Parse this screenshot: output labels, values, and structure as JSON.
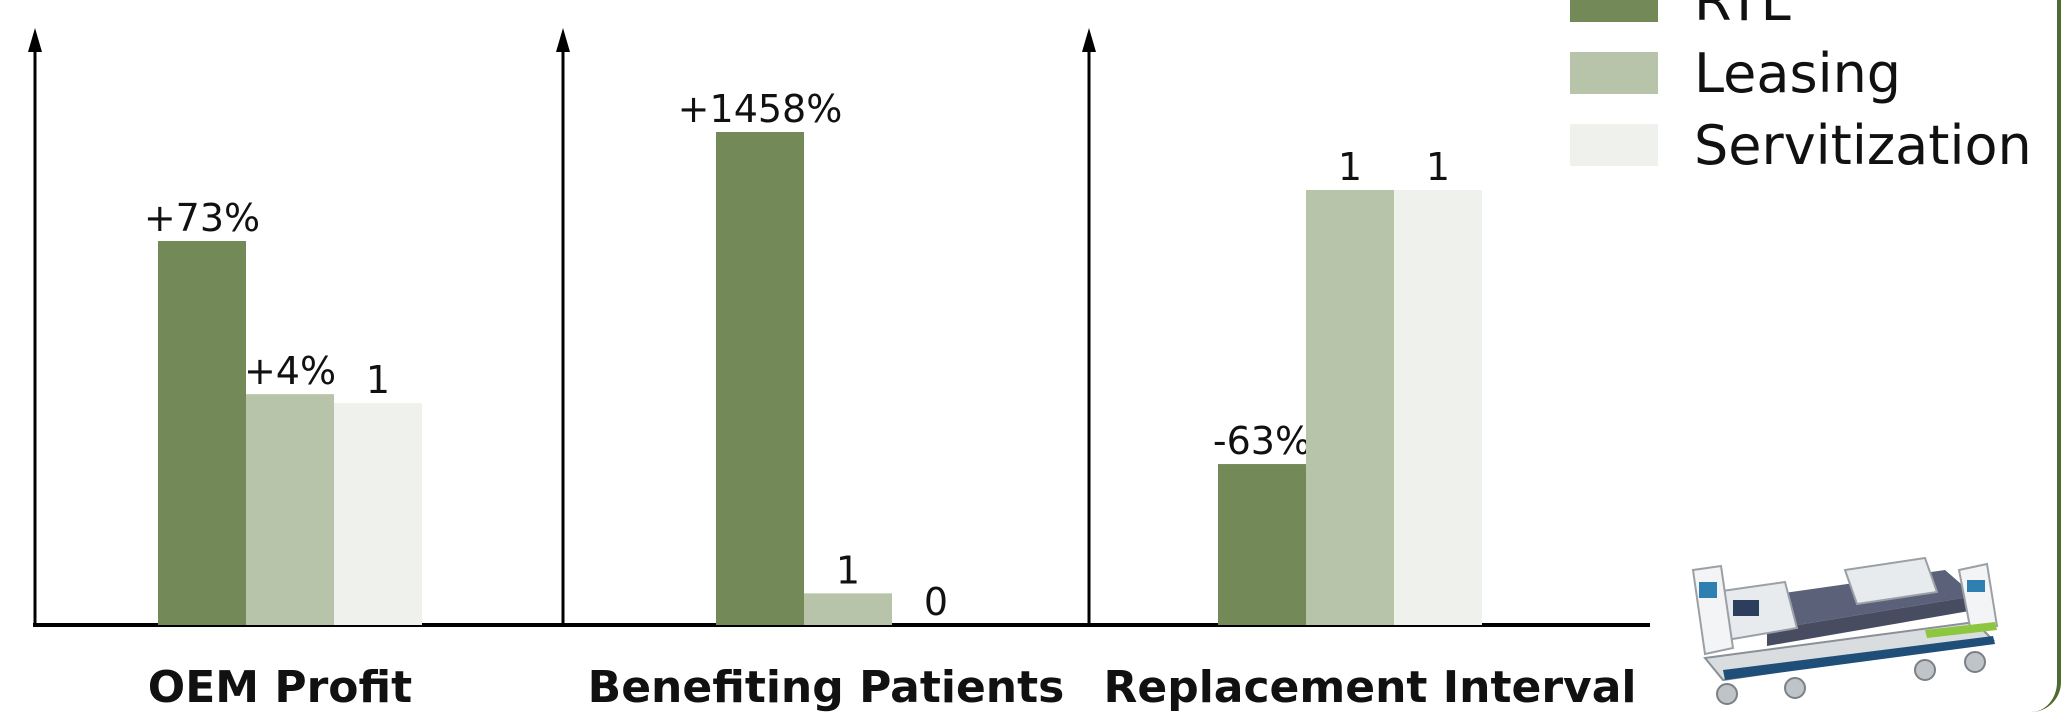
{
  "chart_data": {
    "type": "bar",
    "panels": [
      {
        "category": "OEM Profit",
        "values": [
          1.73,
          1.04,
          1
        ],
        "labels": [
          "+73%",
          "+4%",
          "1"
        ]
      },
      {
        "category": "Benefiting Patients",
        "values": [
          15.58,
          1,
          0
        ],
        "labels": [
          "+1458%",
          "1",
          "0"
        ]
      },
      {
        "category": "Replacement Interval",
        "values": [
          0.37,
          1,
          1
        ],
        "labels": [
          "-63%",
          "1",
          "1"
        ]
      }
    ],
    "series": [
      {
        "name": "RTL",
        "color": "#738957"
      },
      {
        "name": "Leasing",
        "color": "#b8c4aa"
      },
      {
        "name": "Servitization",
        "color": "#eff2ec"
      }
    ],
    "legend_position": "top-right"
  },
  "legend": {
    "items": [
      "RTL",
      "Leasing",
      "Servitization"
    ]
  }
}
